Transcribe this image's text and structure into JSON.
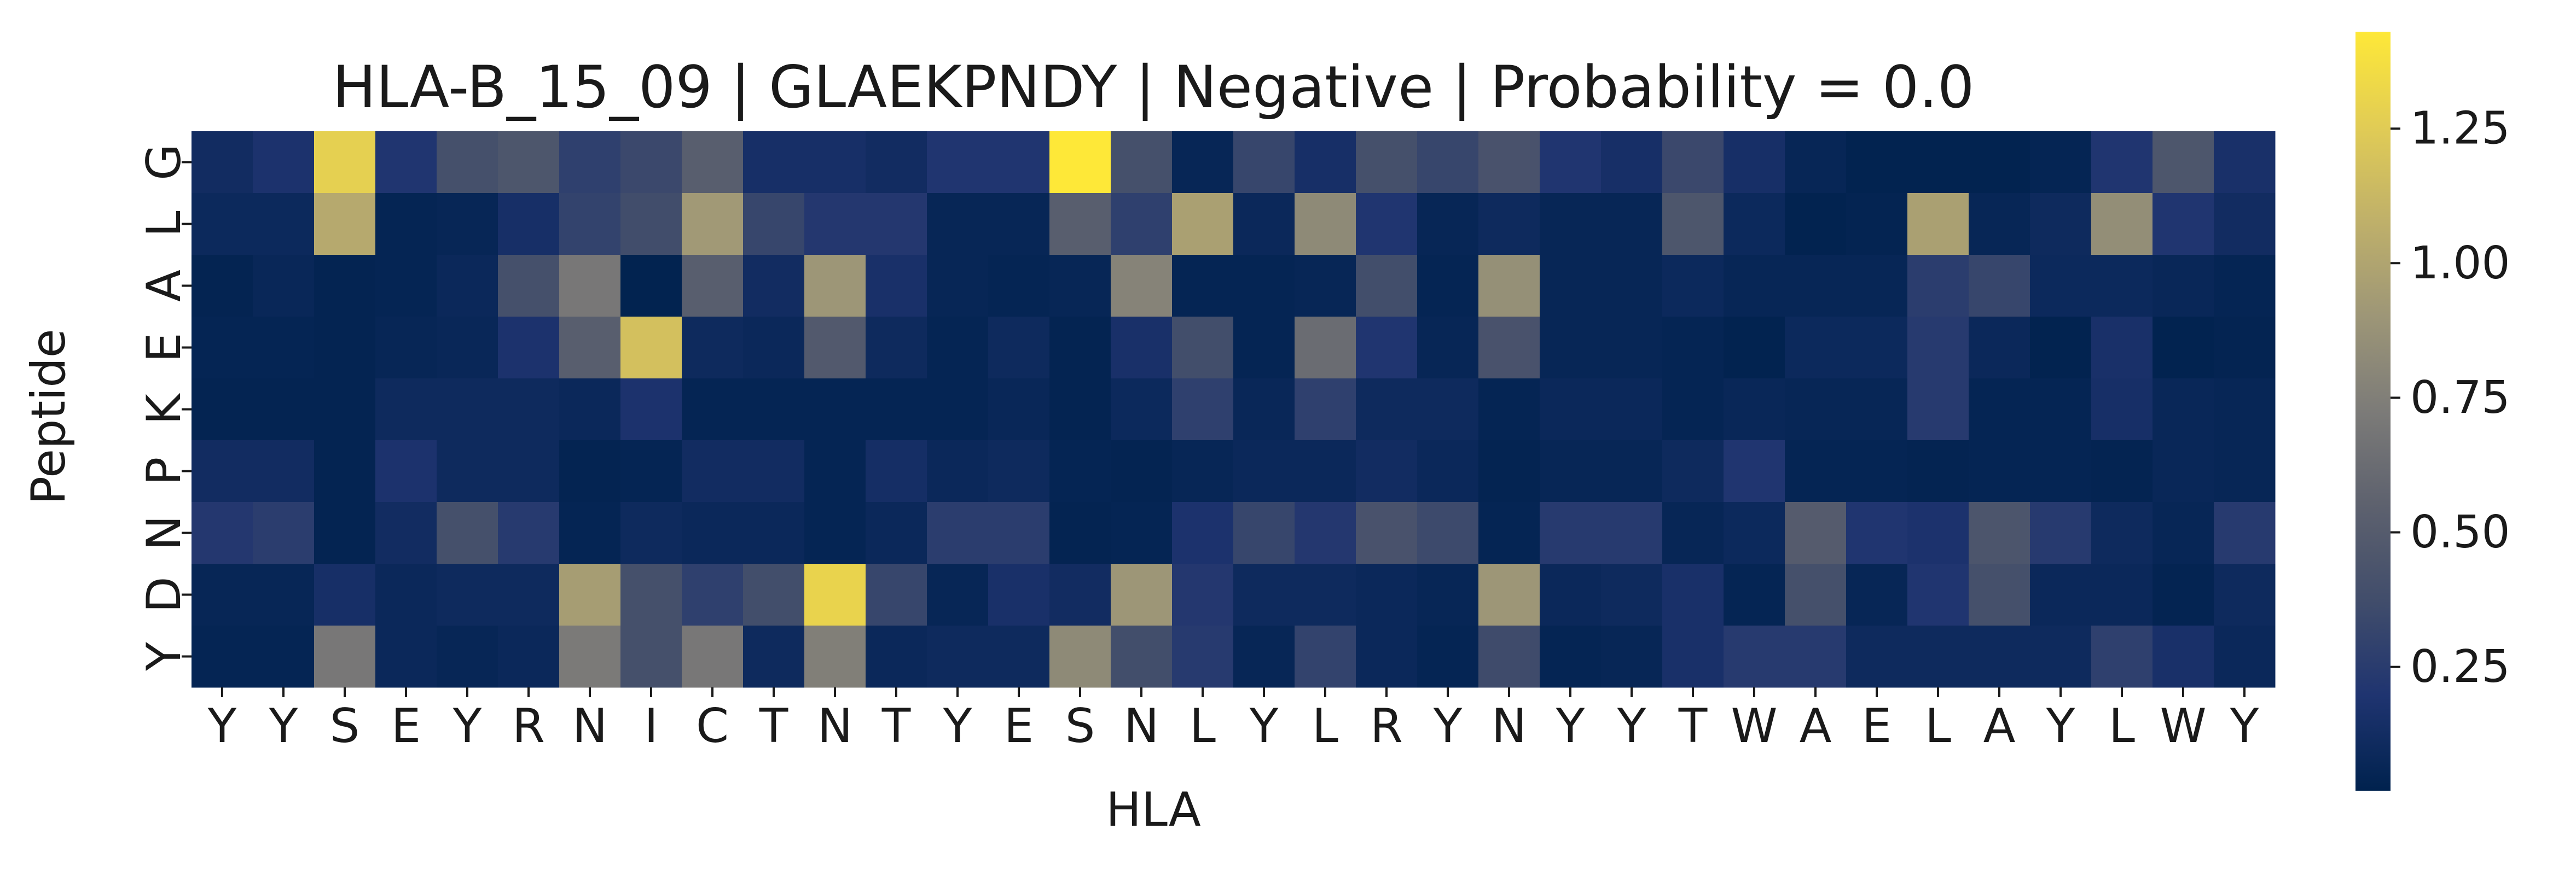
{
  "chart_data": {
    "type": "heatmap",
    "title": "HLA-B_15_09 | GLAEKPNDY | Negative | Probability = 0.0",
    "xlabel": "HLA",
    "ylabel": "Peptide",
    "x_categories": [
      "Y",
      "Y",
      "S",
      "E",
      "Y",
      "R",
      "N",
      "I",
      "C",
      "T",
      "N",
      "T",
      "Y",
      "E",
      "S",
      "N",
      "L",
      "Y",
      "L",
      "R",
      "Y",
      "N",
      "Y",
      "Y",
      "T",
      "W",
      "A",
      "E",
      "L",
      "A",
      "Y",
      "L",
      "W",
      "Y"
    ],
    "y_categories": [
      "G",
      "L",
      "A",
      "E",
      "K",
      "P",
      "N",
      "D",
      "Y"
    ],
    "colormap": "cividis",
    "colorbar_range": [
      0.02,
      1.43
    ],
    "colorbar_ticks": [
      0.25,
      0.5,
      0.75,
      1.0,
      1.25
    ],
    "colorbar_tick_labels": [
      "0.25",
      "0.50",
      "0.75",
      "1.00",
      "1.25"
    ],
    "values": [
      [
        0.12,
        0.18,
        1.28,
        0.2,
        0.4,
        0.45,
        0.28,
        0.34,
        0.52,
        0.15,
        0.15,
        0.12,
        0.2,
        0.2,
        1.43,
        0.4,
        0.06,
        0.32,
        0.15,
        0.4,
        0.32,
        0.42,
        0.2,
        0.15,
        0.34,
        0.15,
        0.06,
        0.03,
        0.03,
        0.03,
        0.05,
        0.2,
        0.45,
        0.16
      ],
      [
        0.09,
        0.09,
        1.03,
        0.05,
        0.06,
        0.15,
        0.3,
        0.37,
        0.92,
        0.32,
        0.22,
        0.22,
        0.06,
        0.06,
        0.52,
        0.28,
        0.97,
        0.08,
        0.82,
        0.2,
        0.06,
        0.1,
        0.06,
        0.06,
        0.45,
        0.09,
        0.03,
        0.04,
        0.97,
        0.06,
        0.1,
        0.85,
        0.2,
        0.12
      ],
      [
        0.04,
        0.07,
        0.04,
        0.05,
        0.08,
        0.4,
        0.7,
        0.03,
        0.52,
        0.12,
        0.9,
        0.16,
        0.06,
        0.05,
        0.06,
        0.78,
        0.05,
        0.05,
        0.06,
        0.38,
        0.05,
        0.86,
        0.06,
        0.06,
        0.09,
        0.06,
        0.06,
        0.06,
        0.26,
        0.32,
        0.09,
        0.09,
        0.07,
        0.05
      ],
      [
        0.05,
        0.05,
        0.04,
        0.06,
        0.07,
        0.18,
        0.52,
        1.18,
        0.1,
        0.08,
        0.48,
        0.1,
        0.05,
        0.1,
        0.04,
        0.16,
        0.38,
        0.05,
        0.62,
        0.2,
        0.06,
        0.42,
        0.06,
        0.06,
        0.05,
        0.03,
        0.09,
        0.09,
        0.24,
        0.08,
        0.03,
        0.16,
        0.03,
        0.04
      ],
      [
        0.04,
        0.04,
        0.04,
        0.1,
        0.1,
        0.1,
        0.08,
        0.18,
        0.05,
        0.05,
        0.05,
        0.05,
        0.05,
        0.07,
        0.04,
        0.09,
        0.28,
        0.07,
        0.28,
        0.1,
        0.1,
        0.05,
        0.08,
        0.08,
        0.05,
        0.07,
        0.06,
        0.06,
        0.24,
        0.05,
        0.05,
        0.15,
        0.07,
        0.06
      ],
      [
        0.12,
        0.12,
        0.04,
        0.18,
        0.1,
        0.1,
        0.04,
        0.05,
        0.12,
        0.12,
        0.05,
        0.14,
        0.08,
        0.1,
        0.05,
        0.04,
        0.06,
        0.08,
        0.08,
        0.12,
        0.08,
        0.04,
        0.06,
        0.06,
        0.1,
        0.2,
        0.05,
        0.05,
        0.04,
        0.05,
        0.05,
        0.04,
        0.07,
        0.06
      ],
      [
        0.22,
        0.26,
        0.04,
        0.12,
        0.4,
        0.24,
        0.05,
        0.1,
        0.08,
        0.08,
        0.05,
        0.08,
        0.26,
        0.26,
        0.04,
        0.05,
        0.18,
        0.32,
        0.22,
        0.42,
        0.35,
        0.05,
        0.24,
        0.24,
        0.06,
        0.09,
        0.5,
        0.2,
        0.18,
        0.44,
        0.24,
        0.1,
        0.06,
        0.24
      ],
      [
        0.06,
        0.06,
        0.15,
        0.08,
        0.1,
        0.1,
        0.95,
        0.4,
        0.28,
        0.38,
        1.3,
        0.32,
        0.06,
        0.16,
        0.12,
        0.9,
        0.22,
        0.1,
        0.1,
        0.08,
        0.06,
        0.9,
        0.08,
        0.1,
        0.16,
        0.05,
        0.4,
        0.06,
        0.2,
        0.4,
        0.08,
        0.08,
        0.04,
        0.1
      ],
      [
        0.05,
        0.05,
        0.7,
        0.08,
        0.06,
        0.08,
        0.72,
        0.4,
        0.7,
        0.1,
        0.75,
        0.08,
        0.1,
        0.1,
        0.82,
        0.38,
        0.24,
        0.06,
        0.3,
        0.08,
        0.05,
        0.36,
        0.05,
        0.06,
        0.16,
        0.24,
        0.24,
        0.1,
        0.1,
        0.1,
        0.1,
        0.28,
        0.16,
        0.08
      ]
    ]
  }
}
